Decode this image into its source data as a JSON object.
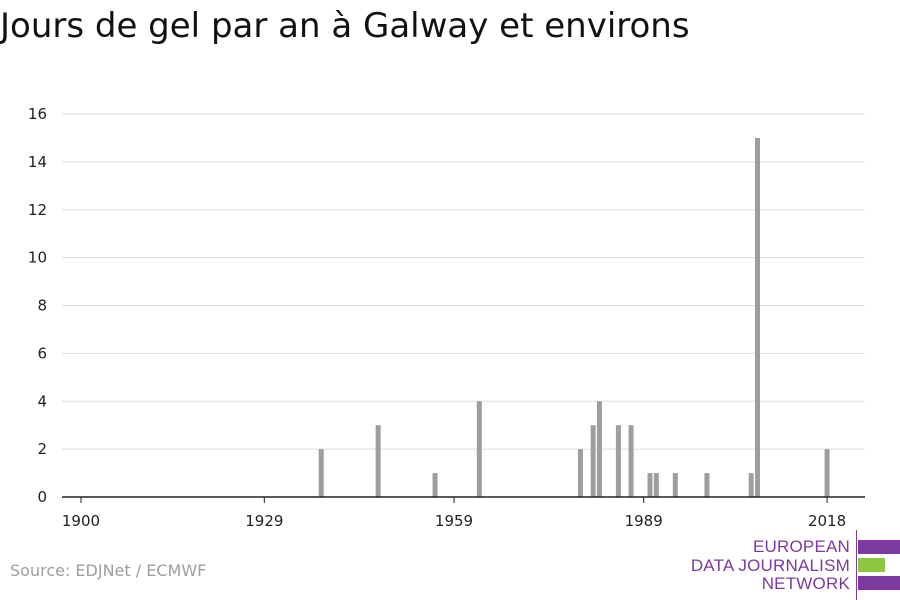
{
  "title": "Jours de gel par an à Galway et environs",
  "source": "Source: EDJNet / ECMWF",
  "logo": {
    "lines": [
      "EUROPEAN",
      "DATA JOURNALISM",
      "NETWORK"
    ],
    "colors": {
      "purple": "#7b3aa0",
      "green": "#8dc63f"
    }
  },
  "chart_data": {
    "type": "bar",
    "title": "Jours de gel par an à Galway et environs",
    "xlabel": "",
    "ylabel": "",
    "xlim": [
      1897,
      2024
    ],
    "ylim": [
      0,
      16
    ],
    "y_ticks": [
      0,
      2,
      4,
      6,
      8,
      10,
      12,
      14,
      16
    ],
    "x_ticks": [
      1900,
      1929,
      1959,
      1989,
      2018
    ],
    "grid": true,
    "bar_color": "#9e9e9e",
    "x": [
      1938,
      1947,
      1956,
      1963,
      1979,
      1981,
      1982,
      1985,
      1987,
      1990,
      1991,
      1994,
      1999,
      2006,
      2007,
      2018
    ],
    "values": [
      2,
      3,
      1,
      4,
      2,
      3,
      4,
      3,
      3,
      1,
      1,
      1,
      1,
      1,
      15,
      2
    ]
  }
}
